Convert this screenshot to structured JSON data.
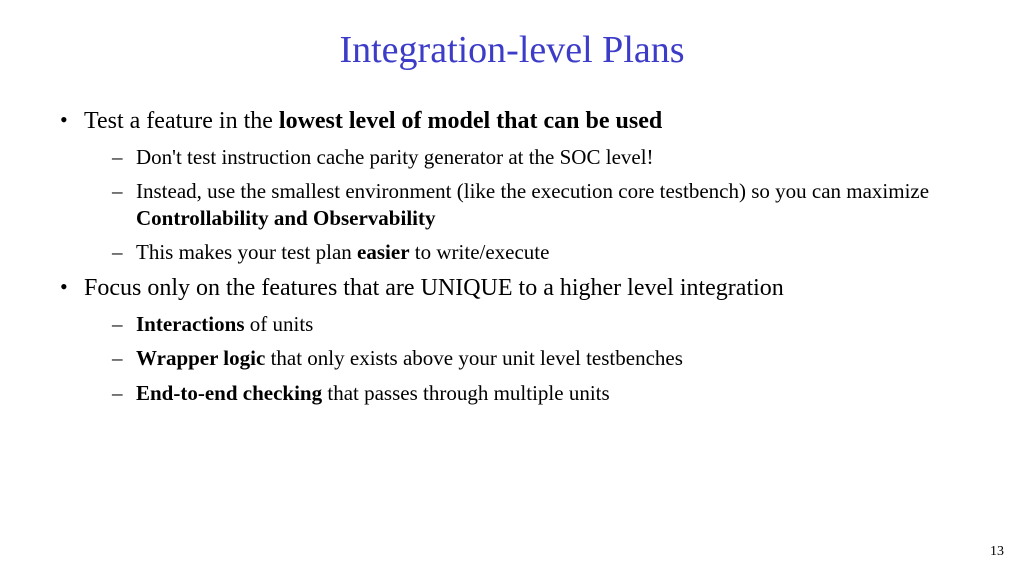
{
  "title": {
    "text": "Integration-level Plans",
    "color": "#3c3cc8",
    "fontsize": 38
  },
  "page_number": "13",
  "colors": {
    "background": "#ffffff",
    "body_text": "#000000"
  },
  "bullets": [
    {
      "runs": [
        {
          "t": "Test a feature in the ",
          "b": false
        },
        {
          "t": "lowest level of model that can be used",
          "b": true
        }
      ],
      "sub": [
        {
          "runs": [
            {
              "t": "Don't test instruction cache parity generator at the SOC level!",
              "b": false
            }
          ]
        },
        {
          "runs": [
            {
              "t": "Instead, use the smallest environment (like the execution core testbench) so you can maximize ",
              "b": false
            },
            {
              "t": "Controllability and Observability",
              "b": true
            }
          ]
        },
        {
          "runs": [
            {
              "t": "This makes your test plan ",
              "b": false
            },
            {
              "t": "easier",
              "b": true
            },
            {
              "t": " to write/execute",
              "b": false
            }
          ]
        }
      ]
    },
    {
      "runs": [
        {
          "t": "Focus only on the features that are UNIQUE to a higher level integration",
          "b": false
        }
      ],
      "sub": [
        {
          "runs": [
            {
              "t": "Interactions",
              "b": true
            },
            {
              "t": " of units",
              "b": false
            }
          ]
        },
        {
          "runs": [
            {
              "t": "Wrapper logic",
              "b": true
            },
            {
              "t": " that only exists above your unit level testbenches",
              "b": false
            }
          ]
        },
        {
          "runs": [
            {
              "t": "End-to-end checking",
              "b": true
            },
            {
              "t": " that passes through multiple units",
              "b": false
            }
          ]
        }
      ]
    }
  ]
}
